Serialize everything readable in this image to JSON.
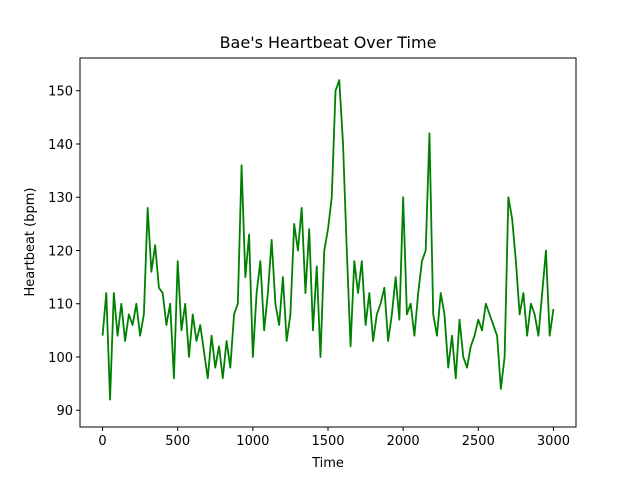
{
  "chart_data": {
    "type": "line",
    "title": "Bae's Heartbeat Over Time",
    "x_label": "Time",
    "y_label": "Heartbeat (bpm)",
    "x": [
      0,
      25,
      50,
      75,
      100,
      125,
      150,
      175,
      200,
      225,
      250,
      275,
      300,
      325,
      350,
      375,
      400,
      425,
      450,
      475,
      500,
      525,
      550,
      575,
      600,
      625,
      650,
      675,
      700,
      725,
      750,
      775,
      800,
      825,
      850,
      875,
      900,
      925,
      950,
      975,
      1000,
      1025,
      1050,
      1075,
      1100,
      1125,
      1150,
      1175,
      1200,
      1225,
      1250,
      1275,
      1300,
      1325,
      1350,
      1375,
      1400,
      1425,
      1450,
      1475,
      1500,
      1525,
      1550,
      1575,
      1600,
      1625,
      1650,
      1675,
      1700,
      1725,
      1750,
      1775,
      1800,
      1825,
      1850,
      1875,
      1900,
      1925,
      1950,
      1975,
      2000,
      2025,
      2050,
      2075,
      2100,
      2125,
      2150,
      2175,
      2200,
      2225,
      2250,
      2275,
      2300,
      2325,
      2350,
      2375,
      2400,
      2425,
      2450,
      2475,
      2500,
      2525,
      2550,
      2575,
      2600,
      2625,
      2650,
      2675,
      2700,
      2725,
      2750,
      2775,
      2800,
      2825,
      2850,
      2875,
      2900,
      2925,
      2950,
      2975,
      3000
    ],
    "series": [
      {
        "name": "Heartbeat",
        "color": "#008000",
        "values": [
          104,
          112,
          92,
          112,
          104,
          110,
          103,
          108,
          106,
          110,
          104,
          108,
          128,
          116,
          121,
          113,
          112,
          106,
          110,
          96,
          118,
          105,
          110,
          100,
          108,
          103,
          106,
          101,
          96,
          104,
          98,
          102,
          96,
          103,
          98,
          108,
          110,
          136,
          115,
          123,
          100,
          112,
          118,
          105,
          112,
          122,
          110,
          106,
          115,
          103,
          108,
          125,
          120,
          128,
          112,
          124,
          105,
          117,
          100,
          120,
          124,
          130,
          150,
          152,
          140,
          120,
          102,
          118,
          112,
          118,
          106,
          112,
          103,
          108,
          110,
          113,
          103,
          108,
          115,
          107,
          130,
          108,
          110,
          104,
          112,
          118,
          120,
          142,
          108,
          104,
          112,
          108,
          98,
          104,
          96,
          107,
          100,
          98,
          102,
          104,
          107,
          105,
          110,
          108,
          106,
          104,
          94,
          100,
          130,
          126,
          118,
          108,
          112,
          104,
          110,
          108,
          104,
          112,
          120,
          104,
          109
        ]
      }
    ],
    "xlim": [
      -150,
      3150
    ],
    "ylim": [
      86.85,
      156.15
    ],
    "xticks": [
      0,
      500,
      1000,
      1500,
      2000,
      2500,
      3000
    ],
    "yticks": [
      90,
      100,
      110,
      120,
      130,
      140,
      150
    ]
  }
}
